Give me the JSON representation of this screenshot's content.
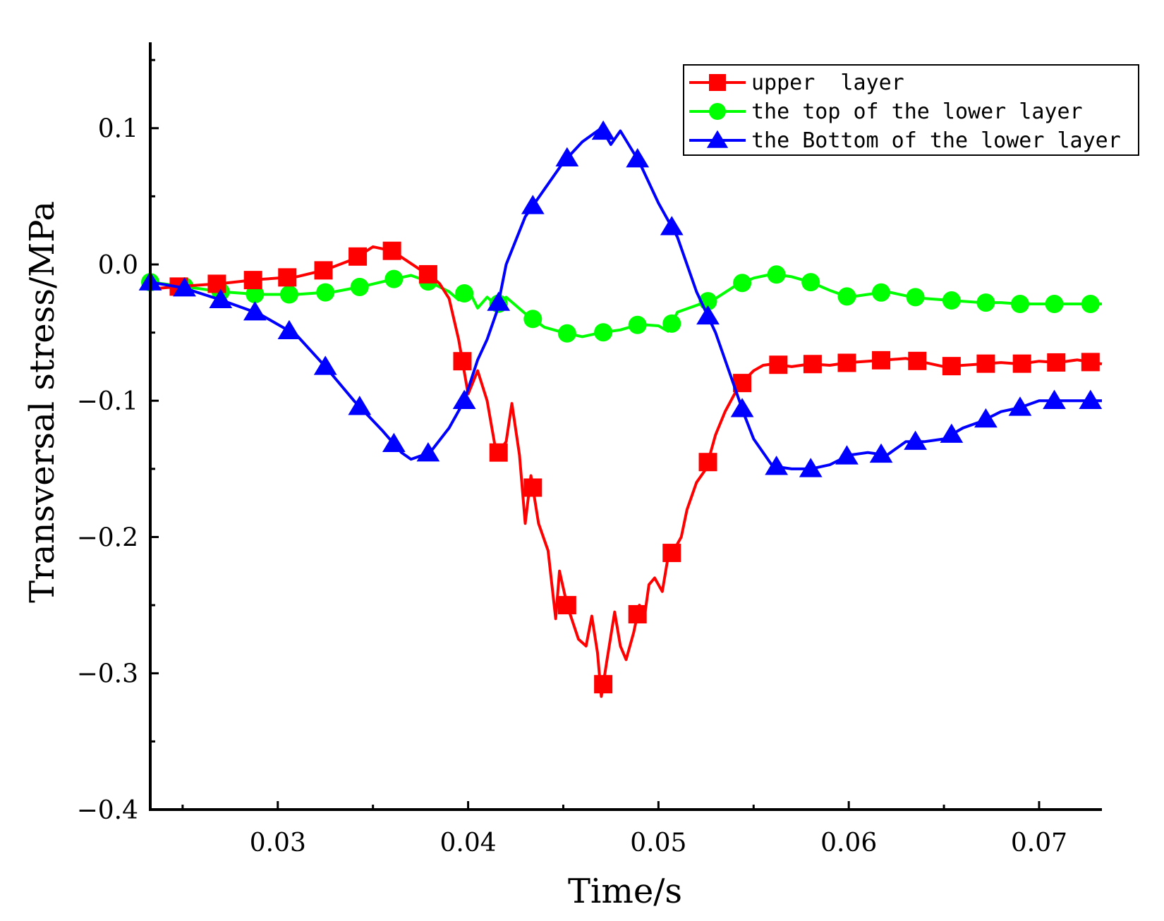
{
  "chart_data": {
    "type": "line",
    "title": "",
    "xlabel": "Time/s",
    "ylabel": "Transversal stress/MPa",
    "xlim": [
      0.0233,
      0.0733
    ],
    "ylim": [
      -0.4,
      0.163
    ],
    "x_ticks": [
      {
        "value": 0.03,
        "label": "0.03"
      },
      {
        "value": 0.04,
        "label": "0.04"
      },
      {
        "value": 0.05,
        "label": "0.05"
      },
      {
        "value": 0.06,
        "label": "0.06"
      },
      {
        "value": 0.07,
        "label": "0.07"
      }
    ],
    "y_ticks": [
      {
        "value": 0.1,
        "label": "0.1"
      },
      {
        "value": 0.0,
        "label": "0.0"
      },
      {
        "value": -0.1,
        "label": "-0.1"
      },
      {
        "value": -0.2,
        "label": "-0.2"
      },
      {
        "value": -0.3,
        "label": "-0.3"
      },
      {
        "value": -0.4,
        "label": "-0.4"
      }
    ],
    "legend_position": "top-right",
    "series": [
      {
        "name": "upper  layer",
        "color": "#ff0000",
        "marker": "square",
        "x": [
          0.0233,
          0.025,
          0.027,
          0.029,
          0.031,
          0.0325,
          0.034,
          0.035,
          0.036,
          0.0375,
          0.038,
          0.0385,
          0.039,
          0.0395,
          0.04,
          0.0405,
          0.041,
          0.0415,
          0.042,
          0.0423,
          0.0427,
          0.043,
          0.0433,
          0.0437,
          0.0442,
          0.0446,
          0.0448,
          0.0452,
          0.0458,
          0.0462,
          0.0465,
          0.0468,
          0.047,
          0.0473,
          0.0477,
          0.048,
          0.0483,
          0.0487,
          0.049,
          0.0493,
          0.0495,
          0.0498,
          0.0502,
          0.0505,
          0.0508,
          0.0512,
          0.0515,
          0.052,
          0.0525,
          0.053,
          0.0535,
          0.054,
          0.0545,
          0.055,
          0.0555,
          0.056,
          0.057,
          0.058,
          0.059,
          0.06,
          0.061,
          0.062,
          0.063,
          0.064,
          0.065,
          0.066,
          0.067,
          0.068,
          0.069,
          0.07,
          0.071,
          0.072,
          0.0733
        ],
        "y": [
          -0.018,
          -0.016,
          -0.014,
          -0.011,
          -0.009,
          -0.004,
          0.004,
          0.013,
          0.01,
          -0.004,
          -0.008,
          -0.014,
          -0.025,
          -0.055,
          -0.095,
          -0.078,
          -0.1,
          -0.14,
          -0.13,
          -0.102,
          -0.14,
          -0.19,
          -0.155,
          -0.19,
          -0.21,
          -0.26,
          -0.225,
          -0.25,
          -0.275,
          -0.28,
          -0.258,
          -0.285,
          -0.317,
          -0.29,
          -0.255,
          -0.28,
          -0.29,
          -0.27,
          -0.25,
          -0.255,
          -0.235,
          -0.23,
          -0.24,
          -0.215,
          -0.21,
          -0.2,
          -0.18,
          -0.16,
          -0.15,
          -0.125,
          -0.108,
          -0.095,
          -0.085,
          -0.078,
          -0.074,
          -0.073,
          -0.075,
          -0.073,
          -0.074,
          -0.072,
          -0.071,
          -0.07,
          -0.069,
          -0.072,
          -0.075,
          -0.074,
          -0.073,
          -0.072,
          -0.073,
          -0.071,
          -0.072,
          -0.07,
          -0.073
        ],
        "markers_x": [
          0.0248,
          0.0268,
          0.0287,
          0.0305,
          0.0324,
          0.0342,
          0.036,
          0.0379,
          0.0397,
          0.0416,
          0.0434,
          0.0452,
          0.0471,
          0.0489,
          0.0507,
          0.0526,
          0.0544,
          0.0563,
          0.0581,
          0.0599,
          0.0617,
          0.0636,
          0.0654,
          0.0672,
          0.0691,
          0.0709,
          0.0727
        ]
      },
      {
        "name": "the top of the lower layer",
        "color": "#00ff00",
        "marker": "circle",
        "x": [
          0.0233,
          0.025,
          0.027,
          0.029,
          0.031,
          0.033,
          0.0345,
          0.036,
          0.037,
          0.038,
          0.039,
          0.0395,
          0.04,
          0.0405,
          0.041,
          0.0415,
          0.042,
          0.043,
          0.044,
          0.045,
          0.046,
          0.047,
          0.048,
          0.049,
          0.05,
          0.0505,
          0.051,
          0.052,
          0.053,
          0.054,
          0.055,
          0.056,
          0.057,
          0.058,
          0.059,
          0.06,
          0.061,
          0.062,
          0.063,
          0.064,
          0.065,
          0.066,
          0.067,
          0.068,
          0.069,
          0.07,
          0.071,
          0.072,
          0.0733
        ],
        "y": [
          -0.013,
          -0.016,
          -0.02,
          -0.022,
          -0.022,
          -0.02,
          -0.016,
          -0.011,
          -0.008,
          -0.013,
          -0.02,
          -0.026,
          -0.018,
          -0.032,
          -0.024,
          -0.03,
          -0.024,
          -0.036,
          -0.046,
          -0.05,
          -0.053,
          -0.05,
          -0.048,
          -0.044,
          -0.045,
          -0.049,
          -0.035,
          -0.03,
          -0.025,
          -0.016,
          -0.01,
          -0.007,
          -0.009,
          -0.013,
          -0.019,
          -0.024,
          -0.022,
          -0.02,
          -0.023,
          -0.025,
          -0.026,
          -0.027,
          -0.028,
          -0.028,
          -0.029,
          -0.029,
          -0.029,
          -0.029,
          -0.029
        ],
        "markers_x": [
          0.0233,
          0.0251,
          0.027,
          0.0288,
          0.0306,
          0.0325,
          0.0343,
          0.0361,
          0.0379,
          0.0398,
          0.0416,
          0.0434,
          0.0452,
          0.0471,
          0.0489,
          0.0507,
          0.0526,
          0.0544,
          0.0562,
          0.058,
          0.0599,
          0.0617,
          0.0635,
          0.0654,
          0.0672,
          0.069,
          0.0708,
          0.0727
        ]
      },
      {
        "name": "the Bottom of the lower layer",
        "color": "#0000ff",
        "marker": "triangle",
        "x": [
          0.0233,
          0.025,
          0.027,
          0.029,
          0.031,
          0.0325,
          0.034,
          0.0355,
          0.0365,
          0.037,
          0.038,
          0.039,
          0.0398,
          0.0405,
          0.041,
          0.0415,
          0.042,
          0.043,
          0.044,
          0.045,
          0.046,
          0.047,
          0.0475,
          0.048,
          0.049,
          0.05,
          0.051,
          0.052,
          0.053,
          0.054,
          0.0545,
          0.055,
          0.056,
          0.057,
          0.058,
          0.059,
          0.06,
          0.061,
          0.062,
          0.063,
          0.064,
          0.065,
          0.066,
          0.067,
          0.068,
          0.069,
          0.07,
          0.071,
          0.072,
          0.0733
        ],
        "y": [
          -0.013,
          -0.017,
          -0.026,
          -0.036,
          -0.052,
          -0.075,
          -0.1,
          -0.122,
          -0.138,
          -0.143,
          -0.138,
          -0.12,
          -0.1,
          -0.07,
          -0.055,
          -0.035,
          0.0,
          0.035,
          0.055,
          0.075,
          0.09,
          0.1,
          0.088,
          0.098,
          0.075,
          0.045,
          0.02,
          -0.02,
          -0.05,
          -0.09,
          -0.11,
          -0.128,
          -0.148,
          -0.15,
          -0.15,
          -0.147,
          -0.14,
          -0.138,
          -0.14,
          -0.13,
          -0.13,
          -0.128,
          -0.12,
          -0.115,
          -0.108,
          -0.105,
          -0.1,
          -0.1,
          -0.1,
          -0.1
        ],
        "markers_x": [
          0.0233,
          0.0251,
          0.027,
          0.0288,
          0.0306,
          0.0325,
          0.0343,
          0.0361,
          0.0379,
          0.0398,
          0.0416,
          0.0434,
          0.0452,
          0.0471,
          0.0489,
          0.0507,
          0.0526,
          0.0544,
          0.0562,
          0.058,
          0.0599,
          0.0617,
          0.0635,
          0.0654,
          0.0672,
          0.069,
          0.0708,
          0.0727
        ]
      }
    ]
  }
}
